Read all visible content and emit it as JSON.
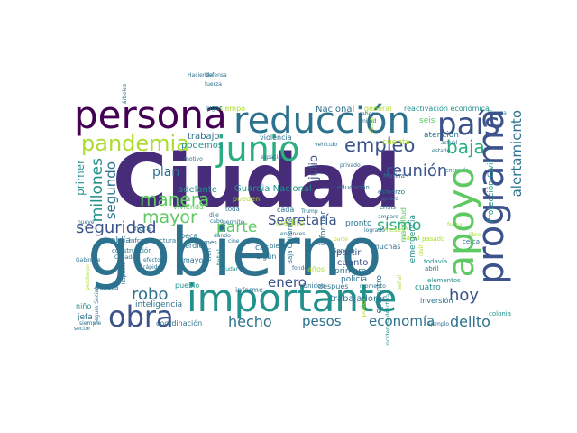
{
  "colors": {
    "background": "#ffffff",
    "palette": [
      "#440154",
      "#472c7a",
      "#3b528b",
      "#2c728e",
      "#21918c",
      "#28ae80",
      "#5ec962",
      "#addc30",
      "#fde725"
    ]
  },
  "words": [
    {
      "text": "Ciudad",
      "color": "#472c7a"
    },
    {
      "text": "gobierno",
      "color": "#2c728e"
    },
    {
      "text": "persona",
      "color": "#440154"
    },
    {
      "text": "reducción",
      "color": "#2c728e"
    },
    {
      "text": "país",
      "color": "#3b528b"
    },
    {
      "text": "junio",
      "color": "#28ae80"
    },
    {
      "text": "importante",
      "color": "#21918c"
    },
    {
      "text": "apoyo",
      "color": "#5ec962"
    },
    {
      "text": "programa",
      "color": "#3b528b"
    },
    {
      "text": "obra",
      "color": "#3b528b"
    },
    {
      "text": "pandemia",
      "color": "#addc30"
    },
    {
      "text": "empleo",
      "color": "#3b528b"
    },
    {
      "text": "baja",
      "color": "#28ae80"
    },
    {
      "text": "manera",
      "color": "#5ec962"
    },
    {
      "text": "mayor",
      "color": "#5ec962"
    },
    {
      "text": "reunión",
      "color": "#3b528b"
    },
    {
      "text": "alertamiento",
      "color": "#2c728e"
    },
    {
      "text": "seguridad",
      "color": "#3b528b"
    },
    {
      "text": "parte",
      "color": "#5ec962"
    },
    {
      "text": "sismo",
      "color": "#28ae80"
    },
    {
      "text": "robo",
      "color": "#2c728e"
    },
    {
      "text": "hoy",
      "color": "#3b528b"
    },
    {
      "text": "hecho",
      "color": "#2c728e"
    },
    {
      "text": "pesos",
      "color": "#2c728e"
    },
    {
      "text": "economía",
      "color": "#2c728e"
    },
    {
      "text": "delito",
      "color": "#2c728e"
    },
    {
      "text": "enero",
      "color": "#3b528b"
    },
    {
      "text": "Secretaría",
      "color": "#3b528b"
    },
    {
      "text": "plan",
      "color": "#2c728e"
    },
    {
      "text": "millones",
      "color": "#21918c"
    },
    {
      "text": "segundo",
      "color": "#2c728e"
    },
    {
      "text": "primer",
      "color": "#21918c"
    },
    {
      "text": "Guardia Nacional",
      "color": "#21918c"
    },
    {
      "text": "adelante",
      "color": "#21918c"
    },
    {
      "text": "trabajadores",
      "color": "#2c728e"
    },
    {
      "text": "atención",
      "color": "#2c728e"
    },
    {
      "text": "Nacional",
      "color": "#2c728e"
    },
    {
      "text": "general",
      "color": "#addc30"
    },
    {
      "text": "reactivación económica",
      "color": "#21918c"
    },
    {
      "text": "tiempo",
      "color": "#addc30"
    },
    {
      "text": "lugar",
      "color": "#21918c"
    },
    {
      "text": "trabajo",
      "color": "#2c728e"
    },
    {
      "text": "podemos",
      "color": "#21918c"
    },
    {
      "text": "violencia",
      "color": "#2c728e"
    },
    {
      "text": "julio",
      "color": "#3b528b"
    },
    {
      "text": "vivienda",
      "color": "#5ec962"
    },
    {
      "text": "pueden",
      "color": "#addc30"
    },
    {
      "text": "toda",
      "color": "#2c728e"
    },
    {
      "text": "cada",
      "color": "#2c728e"
    },
    {
      "text": "beca",
      "color": "#2c728e"
    },
    {
      "text": "pérdida",
      "color": "#2c728e"
    },
    {
      "text": "hora",
      "color": "#2c728e"
    },
    {
      "text": "alcaldía",
      "color": "#2c728e"
    },
    {
      "text": "infraestructura",
      "color": "#2c728e"
    },
    {
      "text": "casi",
      "color": "#2c728e"
    },
    {
      "text": "crédito",
      "color": "#addc30"
    },
    {
      "text": "informar",
      "color": "#2c728e"
    },
    {
      "text": "pronto",
      "color": "#2c728e"
    },
    {
      "text": "partir",
      "color": "#3b528b"
    },
    {
      "text": "cuanto",
      "color": "#3b528b"
    },
    {
      "text": "primero",
      "color": "#2c728e"
    },
    {
      "text": "epicentro",
      "color": "#2c728e"
    },
    {
      "text": "policía",
      "color": "#2c728e"
    },
    {
      "text": "cuatro",
      "color": "#21918c"
    },
    {
      "text": "después",
      "color": "#2c728e"
    },
    {
      "text": "informe",
      "color": "#2c728e"
    },
    {
      "text": "algún",
      "color": "#2c728e"
    },
    {
      "text": "años",
      "color": "#addc30"
    },
    {
      "text": "bien",
      "color": "#2c728e"
    },
    {
      "text": "inteligencia",
      "color": "#2c728e"
    },
    {
      "text": "coordinación",
      "color": "#2c728e"
    },
    {
      "text": "inversión",
      "color": "#2c728e"
    },
    {
      "text": "muchas",
      "color": "#2c728e"
    },
    {
      "text": "entrada",
      "color": "#21918c"
    },
    {
      "text": "cuenta",
      "color": "#addc30"
    },
    {
      "text": "seis",
      "color": "#5ec962"
    },
    {
      "text": "Tijuana",
      "color": "#21918c"
    },
    {
      "text": "Protección Civil",
      "color": "#21918c"
    },
    {
      "text": "emergencia",
      "color": "#21918c"
    },
    {
      "text": "jefa",
      "color": "#2c728e"
    },
    {
      "text": "niño",
      "color": "#21918c"
    },
    {
      "text": "Oaxaca",
      "color": "#2c728e"
    },
    {
      "text": "pueblo",
      "color": "#21918c"
    },
    {
      "text": "mayo",
      "color": "#2c728e"
    },
    {
      "text": "Unidos",
      "color": "#2c728e"
    },
    {
      "text": "Sonora",
      "color": "#2c728e"
    },
    {
      "text": "todavía",
      "color": "#21918c"
    },
    {
      "text": "abril",
      "color": "#2c728e"
    },
    {
      "text": "colonia",
      "color": "#21918c"
    },
    {
      "text": "ejemplo",
      "color": "#2c728e"
    },
    {
      "text": "mes",
      "color": "#2c728e"
    },
    {
      "text": "magnitud",
      "color": "#5ec962"
    },
    {
      "text": "esfuerzo",
      "color": "#2c728e"
    },
    {
      "text": "crisis",
      "color": "#2c728e"
    },
    {
      "text": "cerca",
      "color": "#2c728e"
    },
    {
      "text": "Baja California",
      "color": "#2c728e"
    },
    {
      "text": "educación",
      "color": "#2c728e"
    },
    {
      "text": "Marina",
      "color": "#2c728e"
    },
    {
      "text": "construcción",
      "color": "#2c728e"
    },
    {
      "text": "Seguro Social",
      "color": "#2c728e"
    },
    {
      "text": "Trump",
      "color": "#2c728e"
    },
    {
      "text": "quiero",
      "color": "#2c728e"
    },
    {
      "text": "fondo",
      "color": "#2c728e"
    },
    {
      "text": "momento",
      "color": "#2c728e"
    },
    {
      "text": "dando",
      "color": "#2c728e"
    },
    {
      "text": "nueve",
      "color": "#2c728e"
    },
    {
      "text": "siempre",
      "color": "#2c728e"
    },
    {
      "text": "tren",
      "color": "#2c728e"
    },
    {
      "text": "total",
      "color": "#21918c"
    },
    {
      "text": "ayudar",
      "color": "#21918c"
    },
    {
      "text": "efecto",
      "color": "#2c728e"
    },
    {
      "text": "rápido",
      "color": "#2c728e"
    },
    {
      "text": "Gabinete",
      "color": "#2c728e"
    },
    {
      "text": "árboles",
      "color": "#2c728e"
    },
    {
      "text": "vehículo",
      "color": "#2c728e"
    },
    {
      "text": "fuerza",
      "color": "#2c728e"
    },
    {
      "text": "Defensa",
      "color": "#2c728e"
    },
    {
      "text": "Hacienda",
      "color": "#2c728e"
    },
    {
      "text": "motivo",
      "color": "#2c728e"
    },
    {
      "text": "sabes",
      "color": "#2c728e"
    },
    {
      "text": "mitad",
      "color": "#2c728e"
    },
    {
      "text": "causa",
      "color": "#addc30"
    },
    {
      "text": "pasado",
      "color": "#addc30"
    },
    {
      "text": "meses",
      "color": "#addc30"
    },
    {
      "text": "salud",
      "color": "#addc30"
    },
    {
      "text": "fecha",
      "color": "#addc30"
    },
    {
      "text": "privado",
      "color": "#2c728e"
    },
    {
      "text": "espacia",
      "color": "#2c728e"
    },
    {
      "text": "amparo",
      "color": "#2c728e"
    },
    {
      "text": "logrado",
      "color": "#2c728e"
    },
    {
      "text": "actual",
      "color": "#2c728e"
    },
    {
      "text": "estado",
      "color": "#2c728e"
    },
    {
      "text": "Canadá",
      "color": "#2c728e"
    },
    {
      "text": "elementos",
      "color": "#21918c"
    },
    {
      "text": "libre",
      "color": "#addc30"
    },
    {
      "text": "civil",
      "color": "#addc30"
    },
    {
      "text": "incidencia delictiva",
      "color": "#21918c"
    },
    {
      "text": "entonces",
      "color": "#2c728e"
    },
    {
      "text": "dije",
      "color": "#2c728e"
    },
    {
      "text": "cine",
      "color": "#2c728e"
    },
    {
      "text": "cabo",
      "color": "#2c728e"
    },
    {
      "text": "permite",
      "color": "#2c728e"
    },
    {
      "text": "poder",
      "color": "#addc30"
    },
    {
      "text": "perdieron",
      "color": "#addc30"
    },
    {
      "text": "señal",
      "color": "#addc30"
    },
    {
      "text": "parte",
      "color": "#addc30"
    },
    {
      "text": "sector",
      "color": "#2c728e"
    },
    {
      "text": "Irapuato",
      "color": "#2c728e"
    },
    {
      "text": "recuperación",
      "color": "#2c728e"
    }
  ]
}
